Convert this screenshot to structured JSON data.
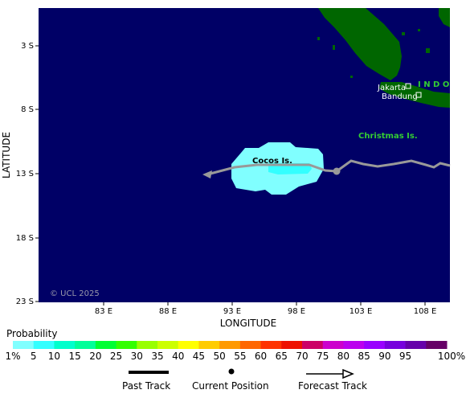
{
  "map": {
    "latitude_label": "LATITUDE",
    "longitude_label": "LONGITUDE",
    "lat_ticks": [
      "3 S",
      "8 S",
      "13 S",
      "18 S",
      "23 S"
    ],
    "lon_ticks": [
      "83 E",
      "88 E",
      "93 E",
      "98 E",
      "103 E",
      "108 E"
    ],
    "copyright": "© UCL 2025",
    "places": {
      "indonesia": "I N D O",
      "jakarta": "Jakarta",
      "bandung": "Bandung",
      "christmas": "Christmas Is.",
      "cocos": "Cocos Is."
    },
    "colors": {
      "ocean": "#000066",
      "land": "#006600",
      "track": "#999999",
      "label_green": "#33cc33"
    }
  },
  "legend": {
    "title": "Probability",
    "labels": [
      "1%",
      "5",
      "10",
      "15",
      "20",
      "25",
      "30",
      "35",
      "40",
      "45",
      "50",
      "55",
      "60",
      "65",
      "70",
      "75",
      "80",
      "85",
      "90",
      "95",
      "100%"
    ],
    "colors": [
      "#80ffff",
      "#33ffff",
      "#00ffcc",
      "#00ff99",
      "#00ff33",
      "#33ff00",
      "#99ff00",
      "#ccff00",
      "#ffff00",
      "#ffcc00",
      "#ff9900",
      "#ff6600",
      "#ff3300",
      "#ee1100",
      "#cc0066",
      "#cc00cc",
      "#bb00ee",
      "#9900ff",
      "#7700dd",
      "#6600aa",
      "#660066"
    ]
  },
  "keys": {
    "past_track": "Past Track",
    "current_position": "Current Position",
    "forecast_track": "Forecast Track"
  }
}
